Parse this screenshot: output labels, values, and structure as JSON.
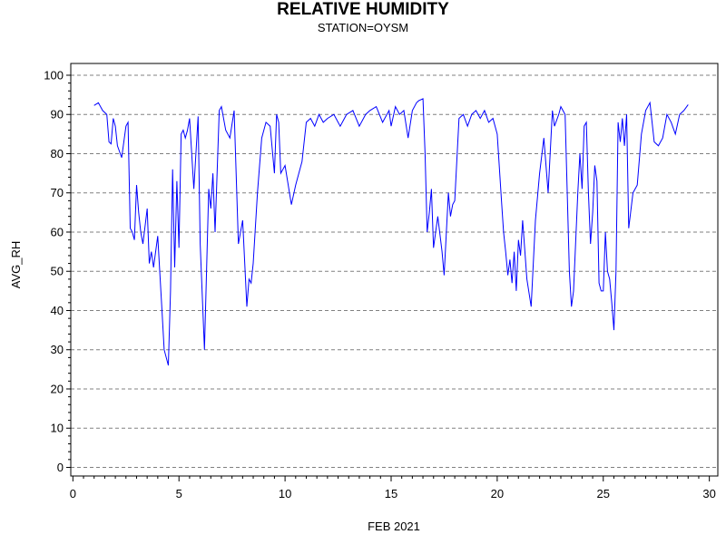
{
  "chart_data": {
    "type": "line",
    "title": "RELATIVE HUMIDITY",
    "subtitle": "STATION=OYSM",
    "xlabel": "FEB 2021",
    "ylabel": "AVG_RH",
    "xlim": [
      -0.1,
      30.4
    ],
    "ylim": [
      -2.2,
      103
    ],
    "xticks": [
      0,
      5,
      10,
      15,
      20,
      25,
      30
    ],
    "yticks": [
      0,
      10,
      20,
      30,
      40,
      50,
      60,
      70,
      80,
      90,
      100
    ],
    "x_minor_step": 0.5,
    "y_minor_step": 2,
    "grid": "horizontal dashed at major y ticks",
    "line_color": "#0000ff",
    "series": [
      {
        "x": [
          1.0,
          1.2,
          1.4,
          1.6,
          1.7,
          1.8,
          1.9,
          2.0,
          2.1,
          2.3,
          2.5,
          2.6,
          2.7,
          2.8,
          2.9,
          3.0,
          3.1,
          3.2,
          3.3,
          3.5,
          3.6,
          3.7,
          3.8,
          4.0,
          4.2,
          4.3,
          4.5,
          4.6,
          4.7,
          4.8,
          4.9,
          5.0,
          5.1,
          5.2,
          5.3,
          5.4,
          5.5,
          5.7,
          5.9,
          6.0,
          6.2,
          6.3,
          6.4,
          6.5,
          6.6,
          6.7,
          6.9,
          7.0,
          7.2,
          7.4,
          7.6,
          7.8,
          8.0,
          8.2,
          8.3,
          8.4,
          8.5,
          8.7,
          8.9,
          9.1,
          9.3,
          9.5,
          9.6,
          9.7,
          9.8,
          10.0,
          10.3,
          10.5,
          10.8,
          11.0,
          11.2,
          11.4,
          11.6,
          11.8,
          12.0,
          12.3,
          12.6,
          12.9,
          13.2,
          13.5,
          13.8,
          14.0,
          14.3,
          14.6,
          14.9,
          15.0,
          15.2,
          15.4,
          15.6,
          15.8,
          16.0,
          16.2,
          16.3,
          16.5,
          16.6,
          16.7,
          16.8,
          16.9,
          17.0,
          17.2,
          17.4,
          17.5,
          17.7,
          17.8,
          17.9,
          18.0,
          18.2,
          18.4,
          18.6,
          18.8,
          19.0,
          19.2,
          19.4,
          19.6,
          19.8,
          20.0,
          20.2,
          20.3,
          20.4,
          20.5,
          20.6,
          20.7,
          20.8,
          20.9,
          21.0,
          21.1,
          21.2,
          21.4,
          21.6,
          21.8,
          22.0,
          22.2,
          22.4,
          22.6,
          22.7,
          22.9,
          23.0,
          23.2,
          23.4,
          23.5,
          23.6,
          23.8,
          23.9,
          24.0,
          24.1,
          24.2,
          24.3,
          24.4,
          24.5,
          24.6,
          24.7,
          24.8,
          24.9,
          25.0,
          25.1,
          25.2,
          25.3,
          25.4,
          25.5,
          25.6,
          25.7,
          25.8,
          25.9,
          26.0,
          26.1,
          26.2,
          26.4,
          26.6,
          26.8,
          27.0,
          27.2,
          27.4,
          27.6,
          27.8,
          28.0,
          28.2,
          28.4,
          28.6,
          28.8,
          29.0
        ],
        "values": [
          92.3,
          93.0,
          91.0,
          90.0,
          83.0,
          82.5,
          89.0,
          87.0,
          82.0,
          79.0,
          87.0,
          88.0,
          61.0,
          60.0,
          58.0,
          72.0,
          65.0,
          60.0,
          57.0,
          66.0,
          52.0,
          55.0,
          51.0,
          59.0,
          40.0,
          30.0,
          26.0,
          45.0,
          76.0,
          51.0,
          73.0,
          56.0,
          85.0,
          86.0,
          84.0,
          86.0,
          89.0,
          71.0,
          89.5,
          57.0,
          30.0,
          50.0,
          71.0,
          66.0,
          75.0,
          60.0,
          91.0,
          92.0,
          86.0,
          84.0,
          91.0,
          57.0,
          63.0,
          41.0,
          48.0,
          47.0,
          52.0,
          70.0,
          84.0,
          88.0,
          87.0,
          75.0,
          90.0,
          88.0,
          75.0,
          77.0,
          67.0,
          72.0,
          78.0,
          88.0,
          89.0,
          87.0,
          90.0,
          88.0,
          89.0,
          90.0,
          87.0,
          90.0,
          91.0,
          87.0,
          90.0,
          91.0,
          92.0,
          88.0,
          91.0,
          87.0,
          92.0,
          90.0,
          91.0,
          84.0,
          91.0,
          93.0,
          93.5,
          94.0,
          80.0,
          60.0,
          65.0,
          71.0,
          56.0,
          64.0,
          55.0,
          49.0,
          70.0,
          64.0,
          67.0,
          68.0,
          89.0,
          90.0,
          87.0,
          90.0,
          91.0,
          89.0,
          91.0,
          88.0,
          89.0,
          85.0,
          68.0,
          60.0,
          55.0,
          49.0,
          53.0,
          47.0,
          55.0,
          45.0,
          58.0,
          54.0,
          63.0,
          48.0,
          41.0,
          63.0,
          75.0,
          84.0,
          70.0,
          91.0,
          87.0,
          90.0,
          92.0,
          90.0,
          50.0,
          41.0,
          45.0,
          70.0,
          80.0,
          71.0,
          87.0,
          88.0,
          70.0,
          57.0,
          65.0,
          77.0,
          73.0,
          47.0,
          45.0,
          45.0,
          60.0,
          50.0,
          48.0,
          42.0,
          35.0,
          50.0,
          88.0,
          83.0,
          89.0,
          82.0,
          90.0,
          61.0,
          70.0,
          72.0,
          85.0,
          91.0,
          93.0,
          83.0,
          82.0,
          84.0,
          90.0,
          88.0,
          85.0,
          90.0,
          91.0,
          92.5
        ]
      }
    ]
  }
}
